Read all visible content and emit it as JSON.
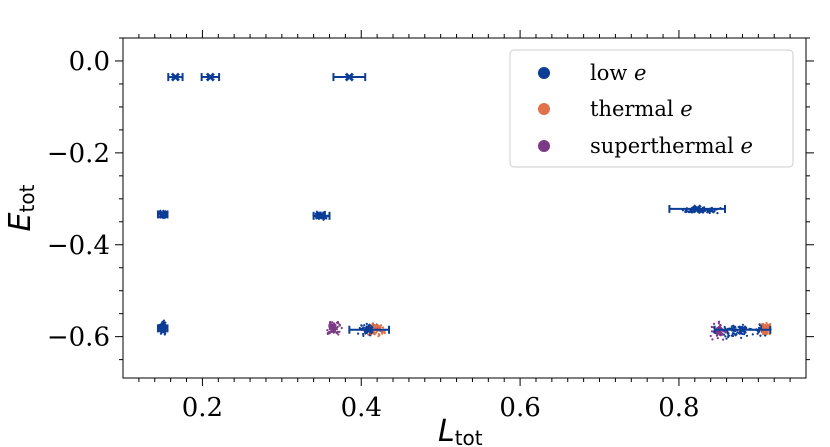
{
  "chart_data": {
    "type": "scatter",
    "xlabel": "L",
    "xlabel_sub": "tot",
    "ylabel": "E",
    "ylabel_sub": "tot",
    "xlim": [
      0.1,
      0.96
    ],
    "ylim": [
      -0.69,
      0.05
    ],
    "xticks": [
      0.2,
      0.4,
      0.6,
      0.8
    ],
    "xtick_labels": [
      "0.2",
      "0.4",
      "0.6",
      "0.8"
    ],
    "yticks": [
      0.0,
      -0.2,
      -0.4,
      -0.6
    ],
    "ytick_labels": [
      "0.0",
      "−0.2",
      "−0.4",
      "−0.6"
    ],
    "legend_placement": "top-right",
    "grid": false,
    "series": [
      {
        "name": "low e",
        "color": "#0b3c96",
        "clusters": [
          {
            "x": 0.15,
            "y": -0.334,
            "sx": 0.004,
            "sy": 0.007,
            "n": 60
          },
          {
            "x": 0.15,
            "y": -0.58,
            "sx": 0.004,
            "sy": 0.012,
            "n": 90
          },
          {
            "x": 0.35,
            "y": -0.337,
            "sx": 0.008,
            "sy": 0.007,
            "n": 70
          },
          {
            "x": 0.825,
            "y": -0.325,
            "sx": 0.022,
            "sy": 0.006,
            "n": 110
          },
          {
            "x": 0.41,
            "y": -0.585,
            "sx": 0.012,
            "sy": 0.014,
            "n": 60
          },
          {
            "x": 0.87,
            "y": -0.588,
            "sx": 0.02,
            "sy": 0.014,
            "n": 70
          },
          {
            "x": 0.905,
            "y": -0.585,
            "sx": 0.006,
            "sy": 0.015,
            "n": 30
          }
        ],
        "markers": [
          {
            "x": 0.166,
            "y": -0.035,
            "xerr": 0.009
          },
          {
            "x": 0.21,
            "y": -0.035,
            "xerr": 0.011
          },
          {
            "x": 0.385,
            "y": -0.035,
            "xerr": 0.02
          },
          {
            "x": 0.15,
            "y": -0.334,
            "xerr": 0.006
          },
          {
            "x": 0.15,
            "y": -0.582,
            "xerr": 0.006
          },
          {
            "x": 0.35,
            "y": -0.337,
            "xerr": 0.01
          },
          {
            "x": 0.823,
            "y": -0.322,
            "xerr": 0.035
          },
          {
            "x": 0.41,
            "y": -0.585,
            "xerr": 0.025
          },
          {
            "x": 0.88,
            "y": -0.585,
            "xerr": 0.035
          }
        ]
      },
      {
        "name": "thermal e",
        "color": "#e0714b",
        "clusters": [
          {
            "x": 0.42,
            "y": -0.585,
            "sx": 0.009,
            "sy": 0.015,
            "n": 70
          },
          {
            "x": 0.91,
            "y": -0.585,
            "sx": 0.006,
            "sy": 0.015,
            "n": 60
          }
        ]
      },
      {
        "name": "superthermal e",
        "color": "#7a3a86",
        "clusters": [
          {
            "x": 0.365,
            "y": -0.58,
            "sx": 0.008,
            "sy": 0.014,
            "n": 90
          },
          {
            "x": 0.85,
            "y": -0.588,
            "sx": 0.009,
            "sy": 0.014,
            "n": 80
          }
        ]
      }
    ]
  }
}
